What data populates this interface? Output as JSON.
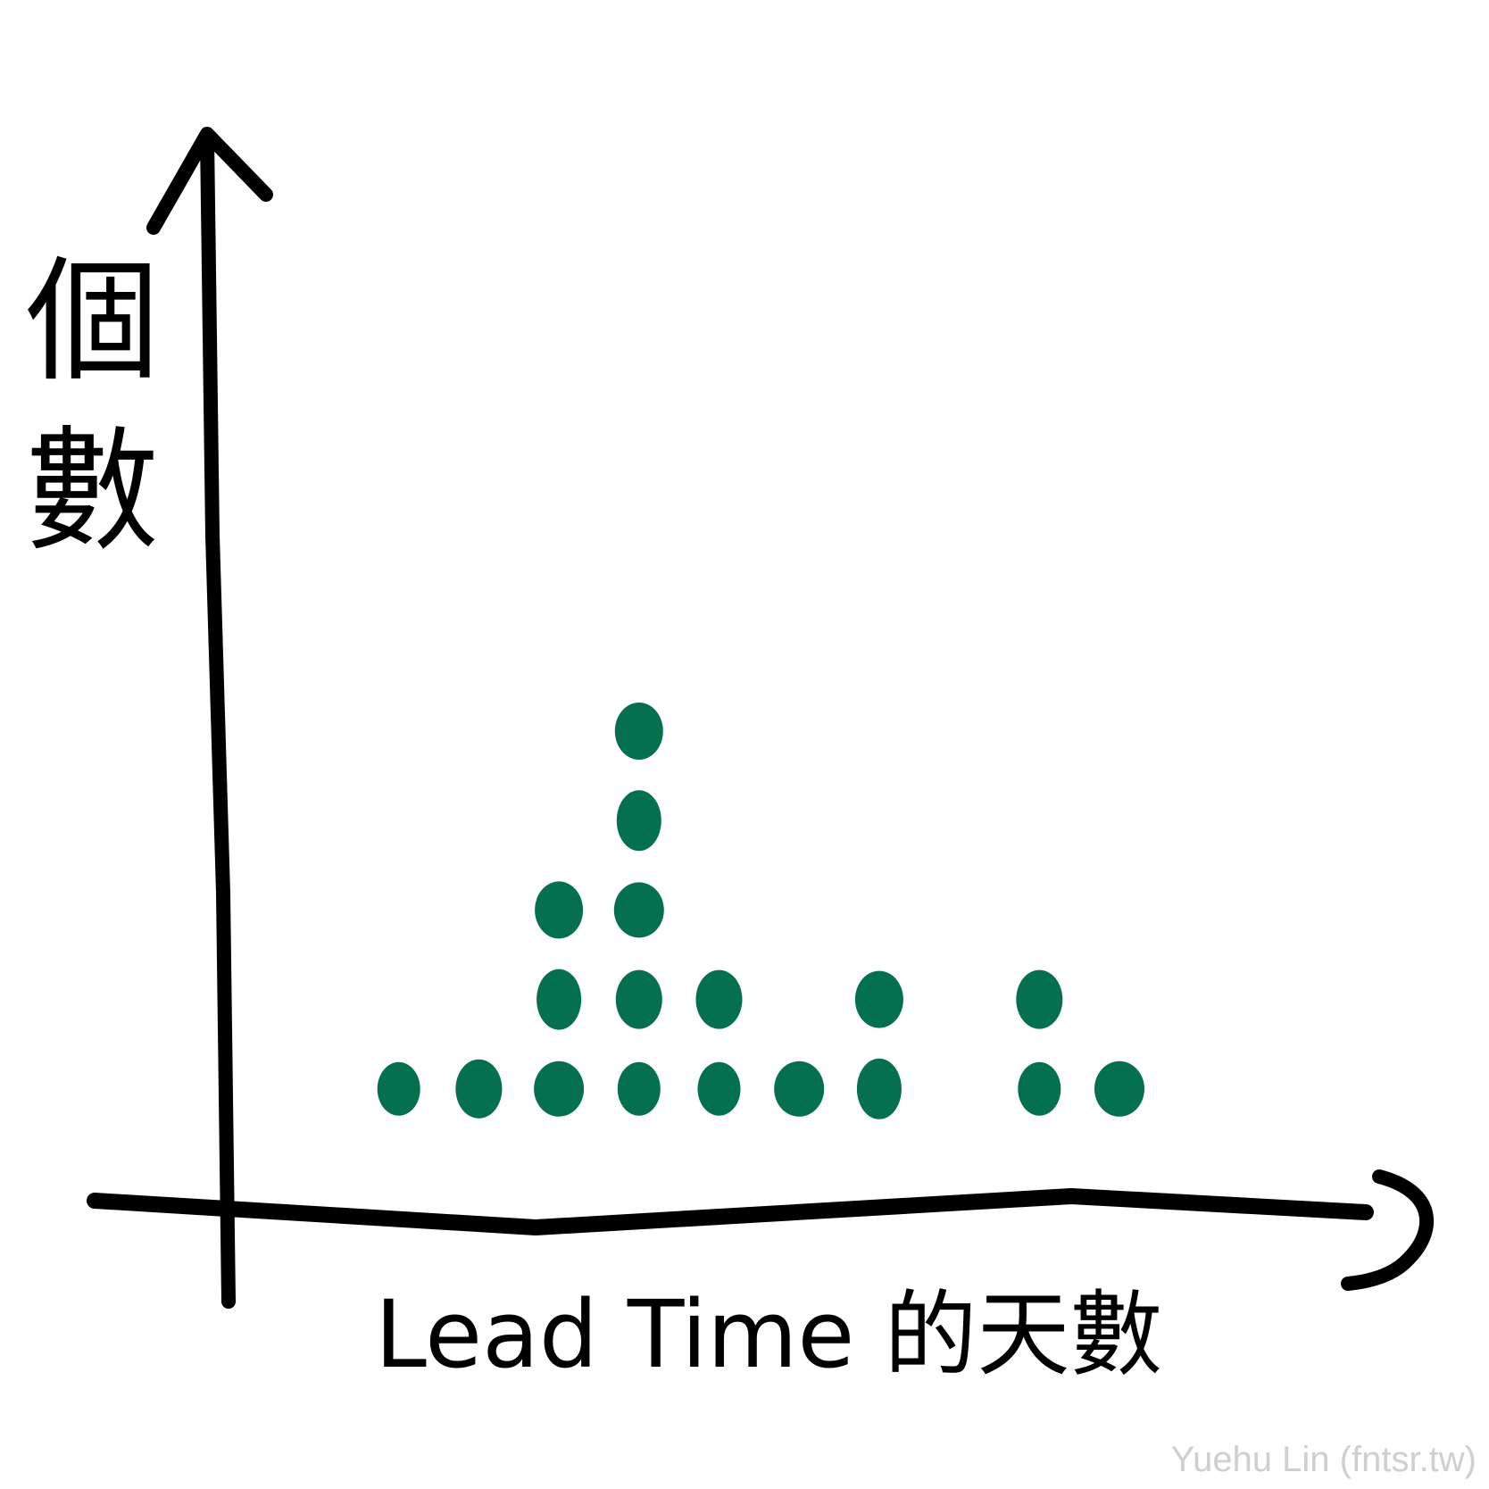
{
  "chart_data": {
    "type": "scatter",
    "style": "dot plot",
    "xlabel": "Lead Time 的天數",
    "ylabel": "個數",
    "grid": false,
    "legend": "none",
    "marker_color": "#047050",
    "axis_color": "#000000",
    "series": [
      {
        "x": [
          1,
          2,
          3,
          3,
          3,
          4,
          4,
          4,
          4,
          4,
          5,
          5,
          6,
          7,
          7,
          9,
          9,
          10
        ],
        "y": [
          1,
          1,
          1,
          2,
          3,
          1,
          2,
          3,
          4,
          5,
          1,
          2,
          1,
          1,
          2,
          1,
          2,
          1
        ]
      }
    ]
  },
  "watermark": "Yuehu Lin (fntsr.tw)"
}
